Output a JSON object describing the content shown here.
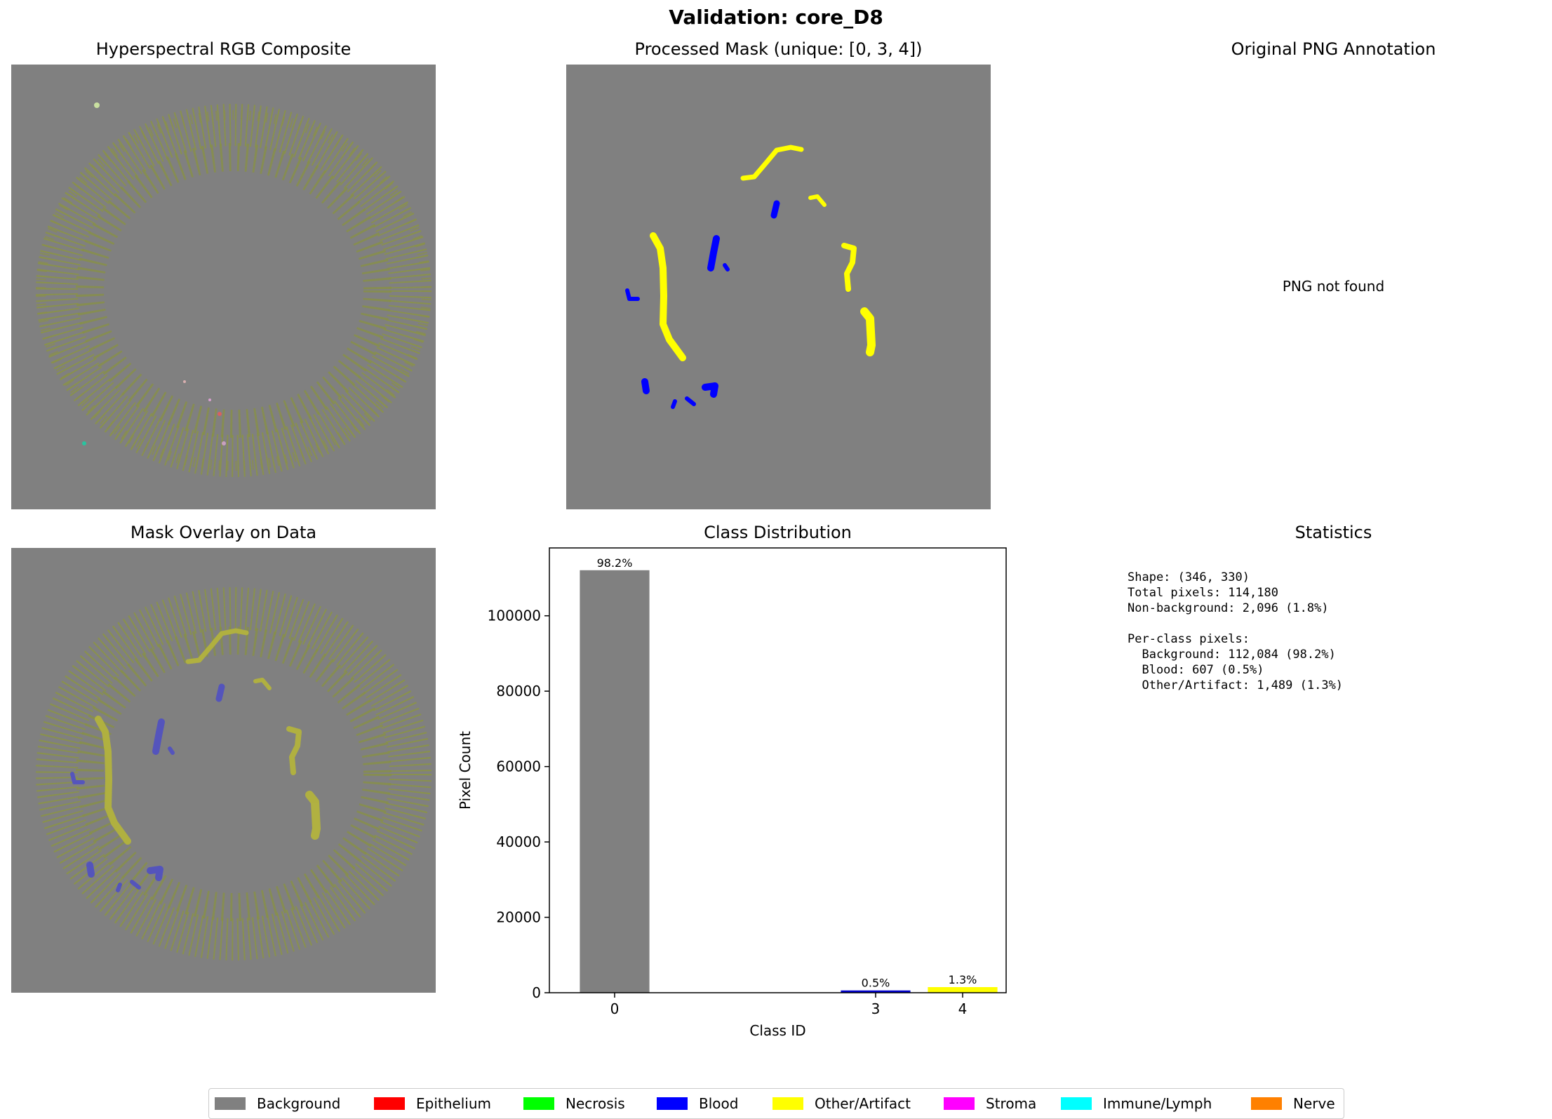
{
  "figure": {
    "suptitle": "Validation: core_D8",
    "panels": {
      "rgb_title": "Hyperspectral RGB Composite",
      "mask_title": "Processed Mask (unique: [0, 3, 4])",
      "png_title": "Original PNG Annotation",
      "png_message": "PNG not found",
      "overlay_title": "Mask Overlay on Data",
      "dist_title": "Class Distribution",
      "stats_title": "Statistics"
    },
    "statistics_text": "Shape: (346, 330)\nTotal pixels: 114,180\nNon-background: 2,096 (1.8%)\n\nPer-class pixels:\n  Background: 112,084 (98.2%)\n  Blood: 607 (0.5%)\n  Other/Artifact: 1,489 (1.3%)",
    "legend": [
      {
        "label": "Background",
        "color": "#808080"
      },
      {
        "label": "Epithelium",
        "color": "#ff0000"
      },
      {
        "label": "Necrosis",
        "color": "#00ff00"
      },
      {
        "label": "Blood",
        "color": "#0000ff"
      },
      {
        "label": "Other/Artifact",
        "color": "#ffff00"
      },
      {
        "label": "Stroma",
        "color": "#ff00ff"
      },
      {
        "label": "Immune/Lymph",
        "color": "#00ffff"
      },
      {
        "label": "Nerve",
        "color": "#ff8000"
      }
    ]
  },
  "chart_data": {
    "type": "bar",
    "title": "Class Distribution",
    "xlabel": "Class ID",
    "ylabel": "Pixel Count",
    "x": [
      0,
      3,
      4
    ],
    "values": [
      112084,
      607,
      1489
    ],
    "bar_labels": [
      "98.2%",
      "0.5%",
      "1.3%"
    ],
    "colors": [
      "#808080",
      "#0000cc",
      "#ffff00"
    ],
    "ylim": [
      0,
      118000
    ],
    "xlim": [
      -0.75,
      4.5
    ],
    "yticks": [
      0,
      20000,
      40000,
      60000,
      80000,
      100000
    ],
    "xticks": [
      0,
      3,
      4
    ],
    "grid": false
  }
}
